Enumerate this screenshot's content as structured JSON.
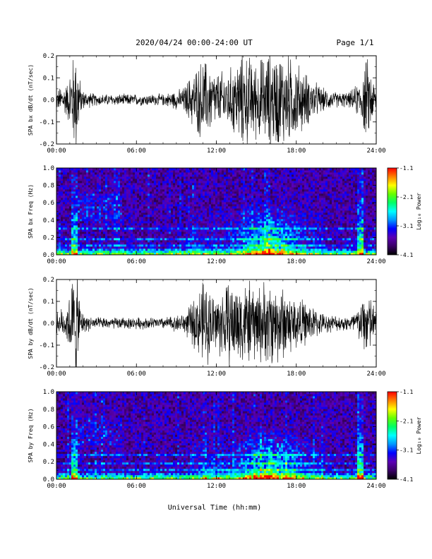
{
  "header": {
    "title": "2020/04/24  00:00-24:00 UT",
    "page": "Page 1/1"
  },
  "xlabel": "Universal Time (hh:mm)",
  "colorbar_label": "Log₁₀ Power",
  "colorbar_ticks": [
    "-1.1",
    "-2.1",
    "-3.1",
    "-4.1"
  ],
  "colors": {
    "trace": "#000000",
    "spectrogram_background": "#1a0033",
    "colormap": [
      "#000000",
      "#3a0066",
      "#5b00b5",
      "#0000ff",
      "#0096ff",
      "#00ffff",
      "#00ff66",
      "#66ff00",
      "#ffff00",
      "#ff8000",
      "#ff0000"
    ]
  },
  "chart_data": [
    {
      "type": "line",
      "name": "bx-waveform",
      "ylabel": "SPA bx dB/dt (nT/sec)",
      "xlim": [
        0,
        24
      ],
      "ylim": [
        -0.2,
        0.2
      ],
      "y_ticks": [
        "-0.2",
        "-0.1",
        "0.0",
        "0.1",
        "0.2"
      ],
      "x_ticks": [
        "00:00",
        "06:00",
        "12:00",
        "18:00",
        "24:00"
      ],
      "envelope": {
        "hours": [
          0,
          0.3,
          0.8,
          1.3,
          1.5,
          1.8,
          2.0,
          3,
          5,
          8,
          9.5,
          10,
          10.5,
          11,
          12,
          13,
          14,
          15,
          16,
          17,
          18,
          19,
          20,
          21,
          22,
          22.8,
          23.3,
          24
        ],
        "amplitude": [
          0.05,
          0.07,
          0.09,
          0.25,
          0.3,
          0.08,
          0.05,
          0.03,
          0.03,
          0.03,
          0.06,
          0.12,
          0.17,
          0.22,
          0.14,
          0.16,
          0.25,
          0.2,
          0.25,
          0.25,
          0.2,
          0.12,
          0.06,
          0.04,
          0.04,
          0.1,
          0.22,
          0.06
        ]
      }
    },
    {
      "type": "heatmap",
      "name": "bx-spectrogram",
      "ylabel": "SPA bx Freq (Hz)",
      "xlim": [
        0,
        24
      ],
      "ylim": [
        0,
        1.0
      ],
      "y_ticks": [
        "0.0",
        "0.2",
        "0.4",
        "0.6",
        "0.8",
        "1.0"
      ],
      "x_ticks": [
        "00:00",
        "06:00",
        "12:00",
        "18:00",
        "24:00"
      ],
      "colorbar_range": [
        -4.1,
        -1.1
      ],
      "features": {
        "line_frequencies_hz": [
          0.1,
          0.18,
          0.3
        ],
        "bright_bursts_hours": [
          1.3,
          22.8
        ],
        "activity_region_hours": [
          13,
          19
        ]
      }
    },
    {
      "type": "line",
      "name": "by-waveform",
      "ylabel": "SPA by dB/dt (nT/sec)",
      "xlim": [
        0,
        24
      ],
      "ylim": [
        -0.2,
        0.2
      ],
      "y_ticks": [
        "-0.2",
        "-0.1",
        "0.0",
        "0.1",
        "0.2"
      ],
      "x_ticks": [
        "00:00",
        "06:00",
        "12:00",
        "18:00",
        "24:00"
      ],
      "envelope": {
        "hours": [
          0,
          0.3,
          0.8,
          1.3,
          1.5,
          1.8,
          2.0,
          3,
          5,
          8,
          9.5,
          10,
          10.5,
          11,
          12,
          13,
          14,
          15,
          16,
          17,
          18,
          19,
          20,
          21,
          22,
          22.8,
          23.3,
          24
        ],
        "amplitude": [
          0.05,
          0.07,
          0.1,
          0.28,
          0.3,
          0.09,
          0.05,
          0.03,
          0.03,
          0.03,
          0.05,
          0.09,
          0.15,
          0.22,
          0.16,
          0.22,
          0.22,
          0.2,
          0.22,
          0.2,
          0.14,
          0.1,
          0.05,
          0.04,
          0.04,
          0.1,
          0.2,
          0.06
        ]
      }
    },
    {
      "type": "heatmap",
      "name": "by-spectrogram",
      "ylabel": "SPA by Freq (Hz)",
      "xlim": [
        0,
        24
      ],
      "ylim": [
        0,
        1.0
      ],
      "y_ticks": [
        "0.0",
        "0.2",
        "0.4",
        "0.6",
        "0.8",
        "1.0"
      ],
      "x_ticks": [
        "00:00",
        "06:00",
        "12:00",
        "18:00",
        "24:00"
      ],
      "colorbar_range": [
        -4.1,
        -1.1
      ],
      "features": {
        "line_frequencies_hz": [
          0.1,
          0.18,
          0.28
        ],
        "bright_bursts_hours": [
          1.3,
          22.8
        ],
        "activity_region_hours": [
          13,
          19
        ]
      }
    }
  ]
}
